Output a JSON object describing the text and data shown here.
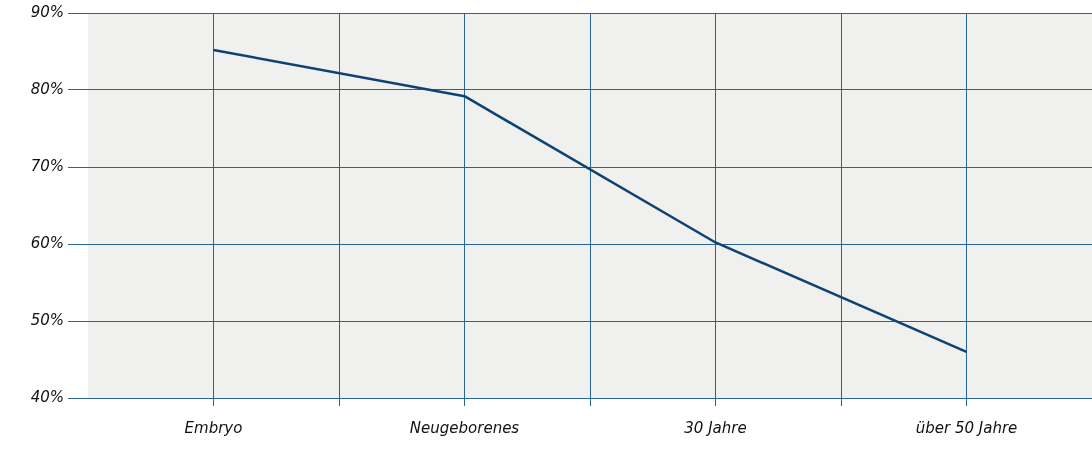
{
  "chart_data": {
    "type": "line",
    "categories": [
      "Embryo",
      "Neugeborenes",
      "30 Jahre",
      "über 50 Jahre"
    ],
    "values": [
      85.2,
      79.2,
      60.2,
      46
    ],
    "color": "#0d4373",
    "ylim": [
      40,
      90
    ],
    "yticks": [
      {
        "value": 40,
        "label": "40%"
      },
      {
        "value": 50,
        "label": "50%"
      },
      {
        "value": 60,
        "label": "60%"
      },
      {
        "value": 70,
        "label": "70%"
      },
      {
        "value": 80,
        "label": "80%"
      },
      {
        "value": 90,
        "label": "90%"
      }
    ],
    "grid": true,
    "marker": "none"
  }
}
